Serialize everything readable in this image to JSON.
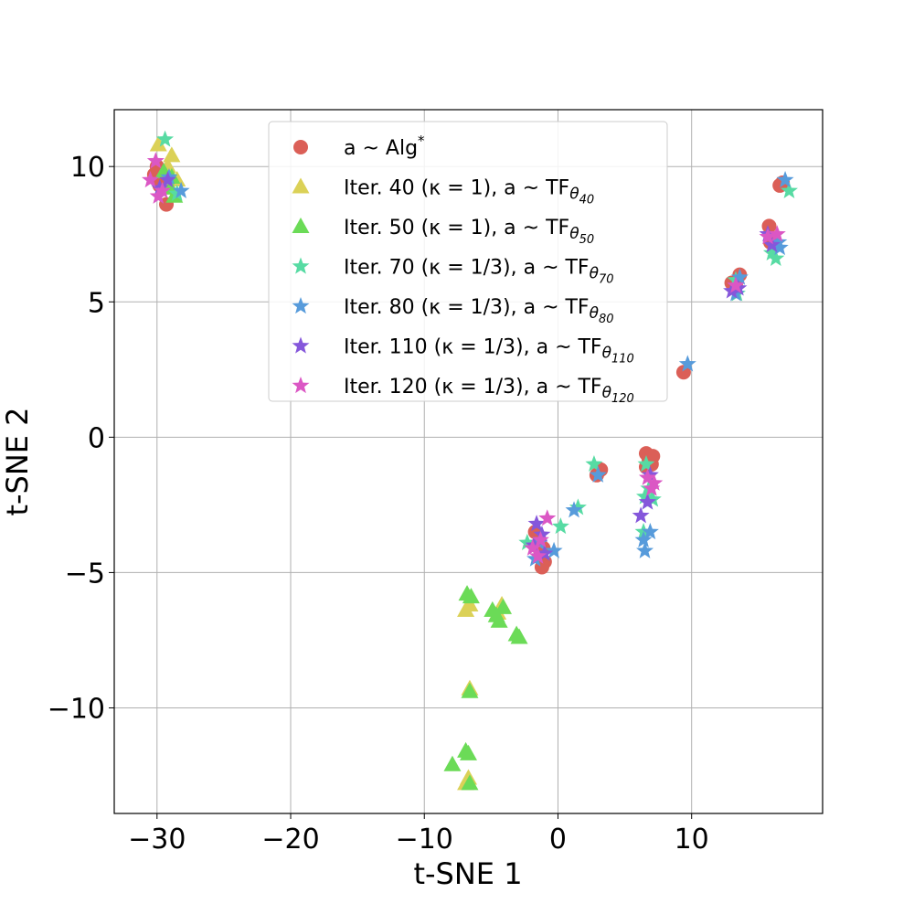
{
  "chart_data": {
    "type": "scatter",
    "title": "",
    "xlabel": "t-SNE 1",
    "ylabel": "t-SNE 2",
    "xlim": [
      -33.2,
      19.8
    ],
    "ylim": [
      -13.9,
      12.1
    ],
    "xticks": [
      -30,
      -20,
      -10,
      0,
      10
    ],
    "xtick_labels": [
      "−30",
      "−20",
      "−10",
      "0",
      "10"
    ],
    "yticks": [
      -10,
      -5,
      0,
      5,
      10
    ],
    "ytick_labels": [
      "−10",
      "−5",
      "0",
      "5",
      "10"
    ],
    "grid": true,
    "legend_position": "top-center",
    "series": [
      {
        "name": "a ~ Alg*",
        "legend": {
          "pre": "a ~ Alg",
          "sup": "*",
          "sub": "",
          "post": ""
        },
        "marker": "circle",
        "color": "#db5f57",
        "x": [
          -30.0,
          -30.2,
          -29.8,
          -29.3,
          3.2,
          2.9,
          -1.7,
          -1.3,
          -1.1,
          -1.0,
          -1.2,
          6.6,
          6.8,
          7.0,
          6.6,
          7.1,
          9.4,
          13.0,
          13.6,
          13.3,
          15.8,
          15.9,
          16.6,
          16.8
        ],
        "y": [
          10.0,
          9.7,
          9.3,
          8.6,
          -1.2,
          -1.4,
          -3.5,
          -4.2,
          -4.1,
          -4.6,
          -4.8,
          -0.6,
          -0.8,
          -1.0,
          -1.1,
          -0.7,
          2.4,
          5.7,
          6.0,
          5.6,
          7.8,
          7.2,
          9.3,
          9.4
        ]
      },
      {
        "name": "Iter. 40 (κ=1), a ~ TFθ_40",
        "legend": {
          "pre": "Iter. 40 (κ = 1), a ~ TF",
          "sup": "",
          "sub": "40",
          "post": ""
        },
        "marker": "triangle",
        "color": "#dbd157",
        "x": [
          -29.9,
          -28.9,
          -29.2,
          -28.5,
          -6.6,
          -6.9,
          -4.2,
          -4.5,
          -6.6,
          -6.7,
          -6.9
        ],
        "y": [
          10.8,
          10.4,
          10.0,
          9.5,
          -6.2,
          -6.4,
          -6.2,
          -6.5,
          -9.3,
          -12.6,
          -12.8
        ]
      },
      {
        "name": "Iter. 50 (κ=1), a ~ TFθ_50",
        "legend": {
          "pre": "Iter. 50 (κ = 1), a ~ TF",
          "sup": "",
          "sub": "50",
          "post": ""
        },
        "marker": "triangle",
        "color": "#6bdb57",
        "x": [
          -29.5,
          -28.9,
          -29.0,
          -28.7,
          -6.8,
          -6.5,
          -4.9,
          -4.6,
          -4.4,
          -4.1,
          -3.1,
          -2.9,
          -6.6,
          -6.9,
          -6.7,
          -7.9,
          -6.6
        ],
        "y": [
          9.8,
          9.6,
          9.2,
          8.9,
          -5.8,
          -5.9,
          -6.4,
          -6.6,
          -6.8,
          -6.3,
          -7.3,
          -7.4,
          -9.4,
          -11.6,
          -11.7,
          -12.1,
          -12.8
        ]
      },
      {
        "name": "Iter. 70 (κ=1/3), a ~ TFθ_70",
        "legend": {
          "pre": "Iter. 70 (κ = 1/3), a ~ TF",
          "sup": "",
          "sub": "70",
          "post": ""
        },
        "marker": "star",
        "color": "#57dba3",
        "x": [
          -29.4,
          -28.5,
          2.7,
          1.5,
          0.2,
          -2.3,
          6.6,
          6.8,
          6.5,
          7.1,
          6.4,
          13.4,
          13.3,
          16.3,
          16.0,
          17.3
        ],
        "y": [
          11.0,
          9.0,
          -1.0,
          -2.6,
          -3.3,
          -3.9,
          -1.0,
          -1.9,
          -2.2,
          -2.3,
          -3.5,
          5.3,
          5.8,
          6.6,
          6.8,
          9.1
        ]
      },
      {
        "name": "Iter. 80 (κ=1/3), a ~ TFθ_80",
        "legend": {
          "pre": "Iter. 80 (κ = 1/3), a ~ TF",
          "sup": "",
          "sub": "80",
          "post": ""
        },
        "marker": "star",
        "color": "#579bdb",
        "x": [
          -29.1,
          -28.2,
          3.0,
          1.2,
          -0.3,
          -1.7,
          -1.4,
          6.4,
          6.5,
          6.9,
          6.7,
          9.7,
          13.3,
          13.6,
          16.6,
          16.5,
          17.0
        ],
        "y": [
          9.6,
          9.1,
          -1.4,
          -2.7,
          -4.2,
          -4.5,
          -3.9,
          -3.8,
          -4.2,
          -3.5,
          -2.4,
          2.7,
          5.3,
          5.9,
          7.0,
          7.2,
          9.5
        ]
      },
      {
        "name": "Iter. 110 (κ=1/3), a ~ TFθ_110",
        "legend": {
          "pre": "Iter. 110 (κ = 1/3), a ~ TF",
          "sup": "",
          "sub": "110",
          "post": ""
        },
        "marker": "star",
        "color": "#8557db",
        "x": [
          -29.8,
          -29.2,
          -1.6,
          -1.2,
          -1.0,
          -1.8,
          6.2,
          6.7,
          6.9,
          13.0,
          13.5,
          16.0,
          15.7
        ],
        "y": [
          9.2,
          9.5,
          -3.2,
          -3.6,
          -4.3,
          -4.0,
          -2.9,
          -2.4,
          -1.4,
          5.4,
          5.5,
          7.1,
          7.5
        ]
      },
      {
        "name": "Iter. 120 (κ=1/3), a ~ TFθ_120",
        "legend": {
          "pre": "Iter. 120 (κ = 1/3), a ~ TF",
          "sup": "",
          "sub": "120",
          "post": ""
        },
        "marker": "star",
        "color": "#db57c4",
        "x": [
          -30.5,
          -30.1,
          -29.9,
          -29.6,
          -0.8,
          -1.3,
          -1.5,
          -1.9,
          7.2,
          7.0,
          6.7,
          13.3,
          15.7,
          16.4
        ],
        "y": [
          9.5,
          10.2,
          8.9,
          9.1,
          -3.0,
          -3.8,
          -4.4,
          -4.1,
          -1.7,
          -1.9,
          -1.5,
          5.6,
          7.4,
          7.5
        ]
      }
    ]
  }
}
